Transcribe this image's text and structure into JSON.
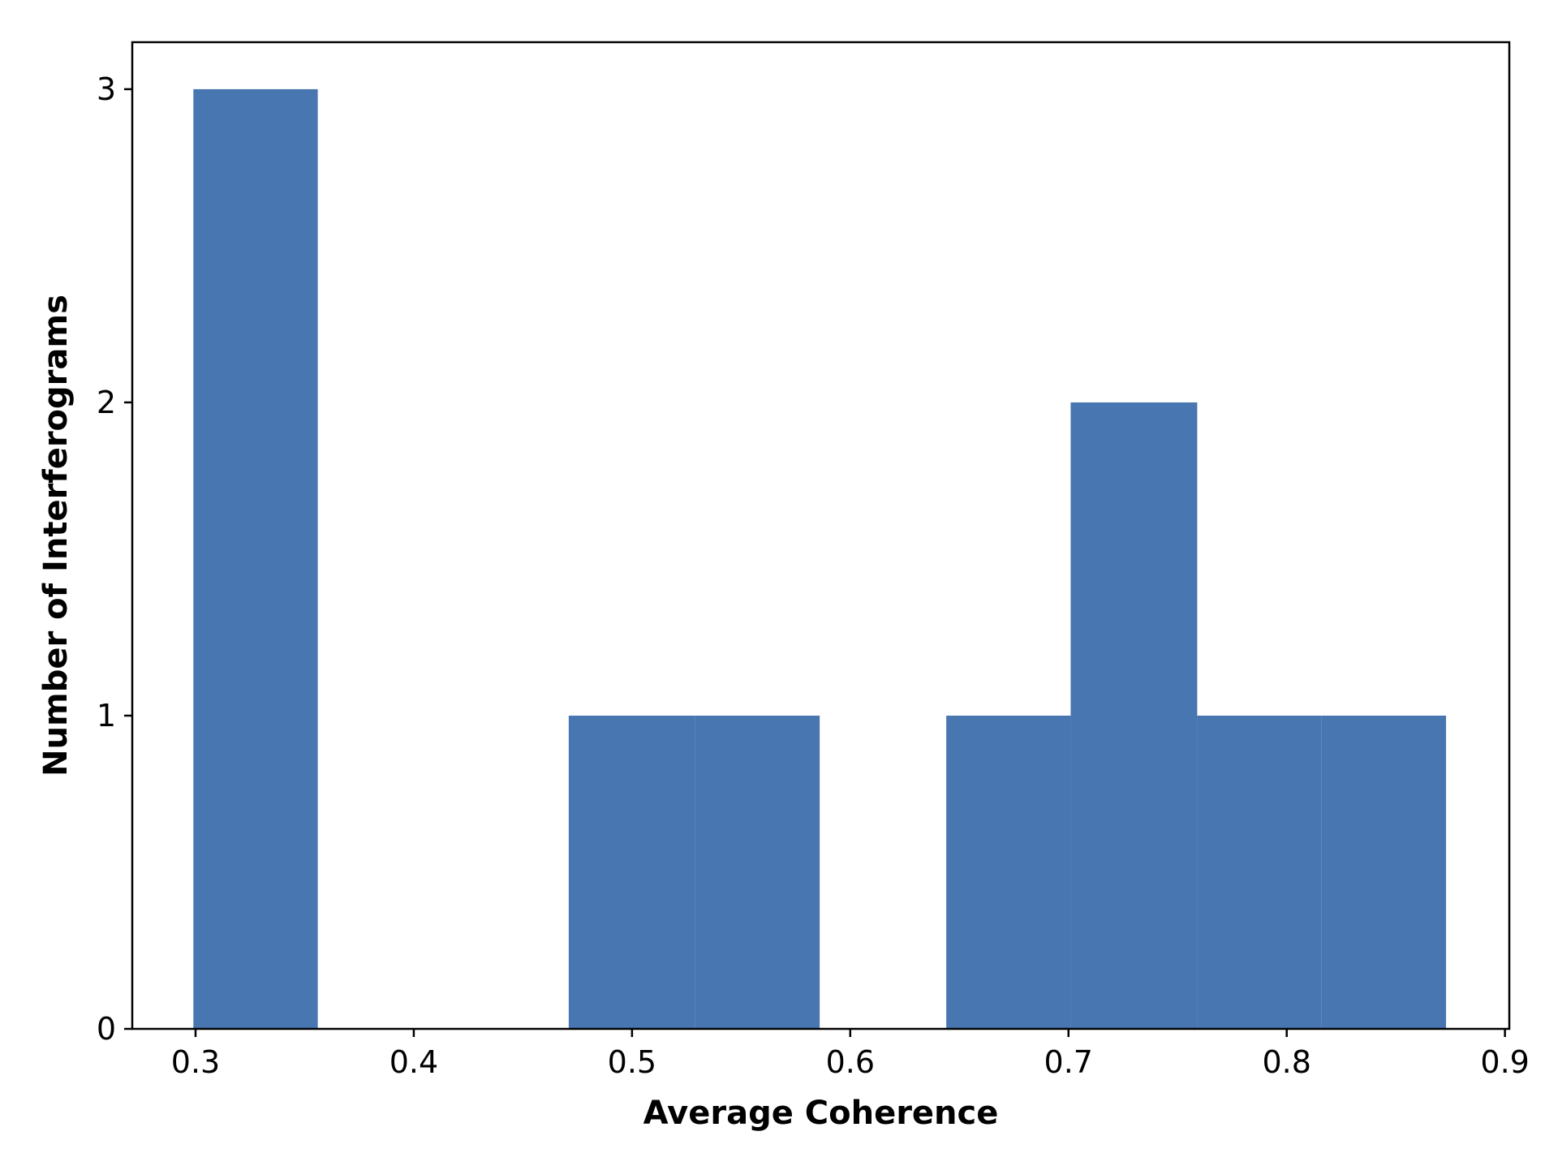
{
  "chart_data": {
    "type": "bar",
    "subtype": "histogram",
    "title": "",
    "xlabel": "Average Coherence",
    "ylabel": "Number of Interferograms",
    "xlim": [
      0.271,
      0.902
    ],
    "ylim": [
      0,
      3.15
    ],
    "xticks": [
      0.3,
      0.4,
      0.5,
      0.6,
      0.7,
      0.8,
      0.9
    ],
    "xtick_labels": [
      "0.3",
      "0.4",
      "0.5",
      "0.6",
      "0.7",
      "0.8",
      "0.9"
    ],
    "yticks": [
      0,
      1,
      2,
      3
    ],
    "ytick_labels": [
      "0",
      "1",
      "2",
      "3"
    ],
    "bar_color": "#4876b0",
    "grid": false,
    "bins": [
      {
        "x0": 0.299,
        "x1": 0.356,
        "count": 3
      },
      {
        "x0": 0.356,
        "x1": 0.414,
        "count": 0
      },
      {
        "x0": 0.414,
        "x1": 0.471,
        "count": 0
      },
      {
        "x0": 0.471,
        "x1": 0.529,
        "count": 1
      },
      {
        "x0": 0.529,
        "x1": 0.586,
        "count": 1
      },
      {
        "x0": 0.586,
        "x1": 0.644,
        "count": 0
      },
      {
        "x0": 0.644,
        "x1": 0.701,
        "count": 1
      },
      {
        "x0": 0.701,
        "x1": 0.759,
        "count": 2
      },
      {
        "x0": 0.759,
        "x1": 0.816,
        "count": 1
      },
      {
        "x0": 0.816,
        "x1": 0.873,
        "count": 1
      }
    ]
  }
}
